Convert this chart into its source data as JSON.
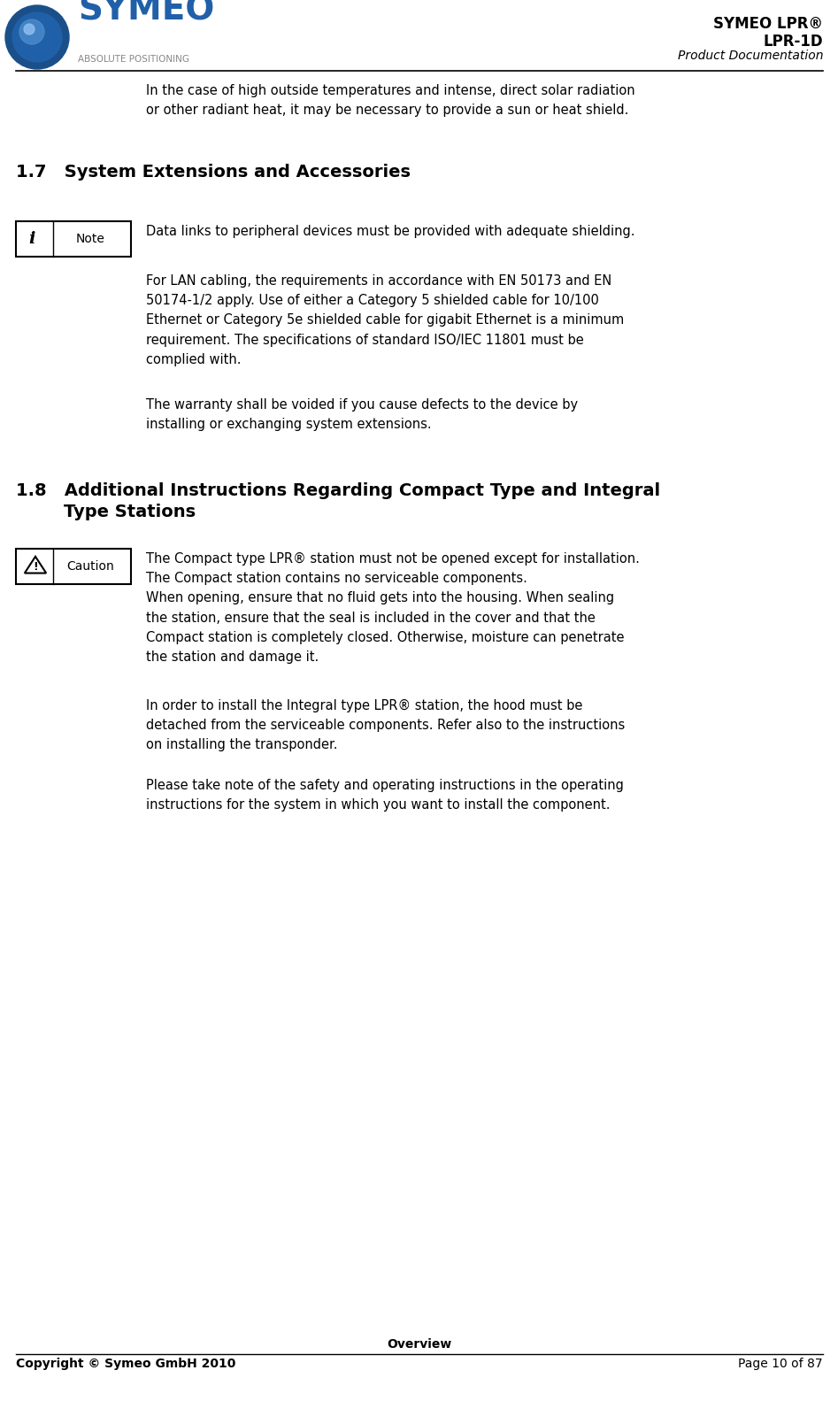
{
  "bg_color": "#ffffff",
  "text_color": "#000000",
  "header_title_lines": [
    "SYMEO LPR®",
    "LPR-1D",
    "Product Documentation"
  ],
  "footer_center_text": "Overview",
  "footer_left_text": "Copyright © Symeo GmbH 2010",
  "footer_right_text": "Page 10 of 87",
  "intro_text": "In the case of high outside temperatures and intense, direct solar radiation\nor other radiant heat, it may be necessary to provide a sun or heat shield.",
  "section17_title": "1.7   System Extensions and Accessories",
  "note_para1": "Data links to peripheral devices must be provided with adequate shielding.",
  "note_para2": "For LAN cabling, the requirements in accordance with EN 50173 and EN\n50174-1/2 apply. Use of either a Category 5 shielded cable for 10/100\nEthernet or Category 5e shielded cable for gigabit Ethernet is a minimum\nrequirement. The specifications of standard ISO/IEC 11801 must be\ncomplied with.",
  "note_para3": "The warranty shall be voided if you cause defects to the device by\ninstalling or exchanging system extensions.",
  "section18_title": "1.8   Additional Instructions Regarding Compact Type and Integral\n        Type Stations",
  "caution_para1": "The Compact type LPR® station must not be opened except for installation.\nThe Compact station contains no serviceable components.\nWhen opening, ensure that no fluid gets into the housing. When sealing\nthe station, ensure that the seal is included in the cover and that the\nCompact station is completely closed. Otherwise, moisture can penetrate\nthe station and damage it.",
  "caution_para2": "In order to install the Integral type LPR® station, the hood must be\ndetached from the serviceable components. Refer also to the instructions\non installing the transponder.",
  "caution_para3": "Please take note of the safety and operating instructions in the operating\ninstructions for the system in which you want to install the component.",
  "font_size_body": 10.5,
  "font_size_section": 14.0,
  "font_size_footer": 10,
  "font_size_header_title": 12,
  "font_size_header_sub": 10
}
